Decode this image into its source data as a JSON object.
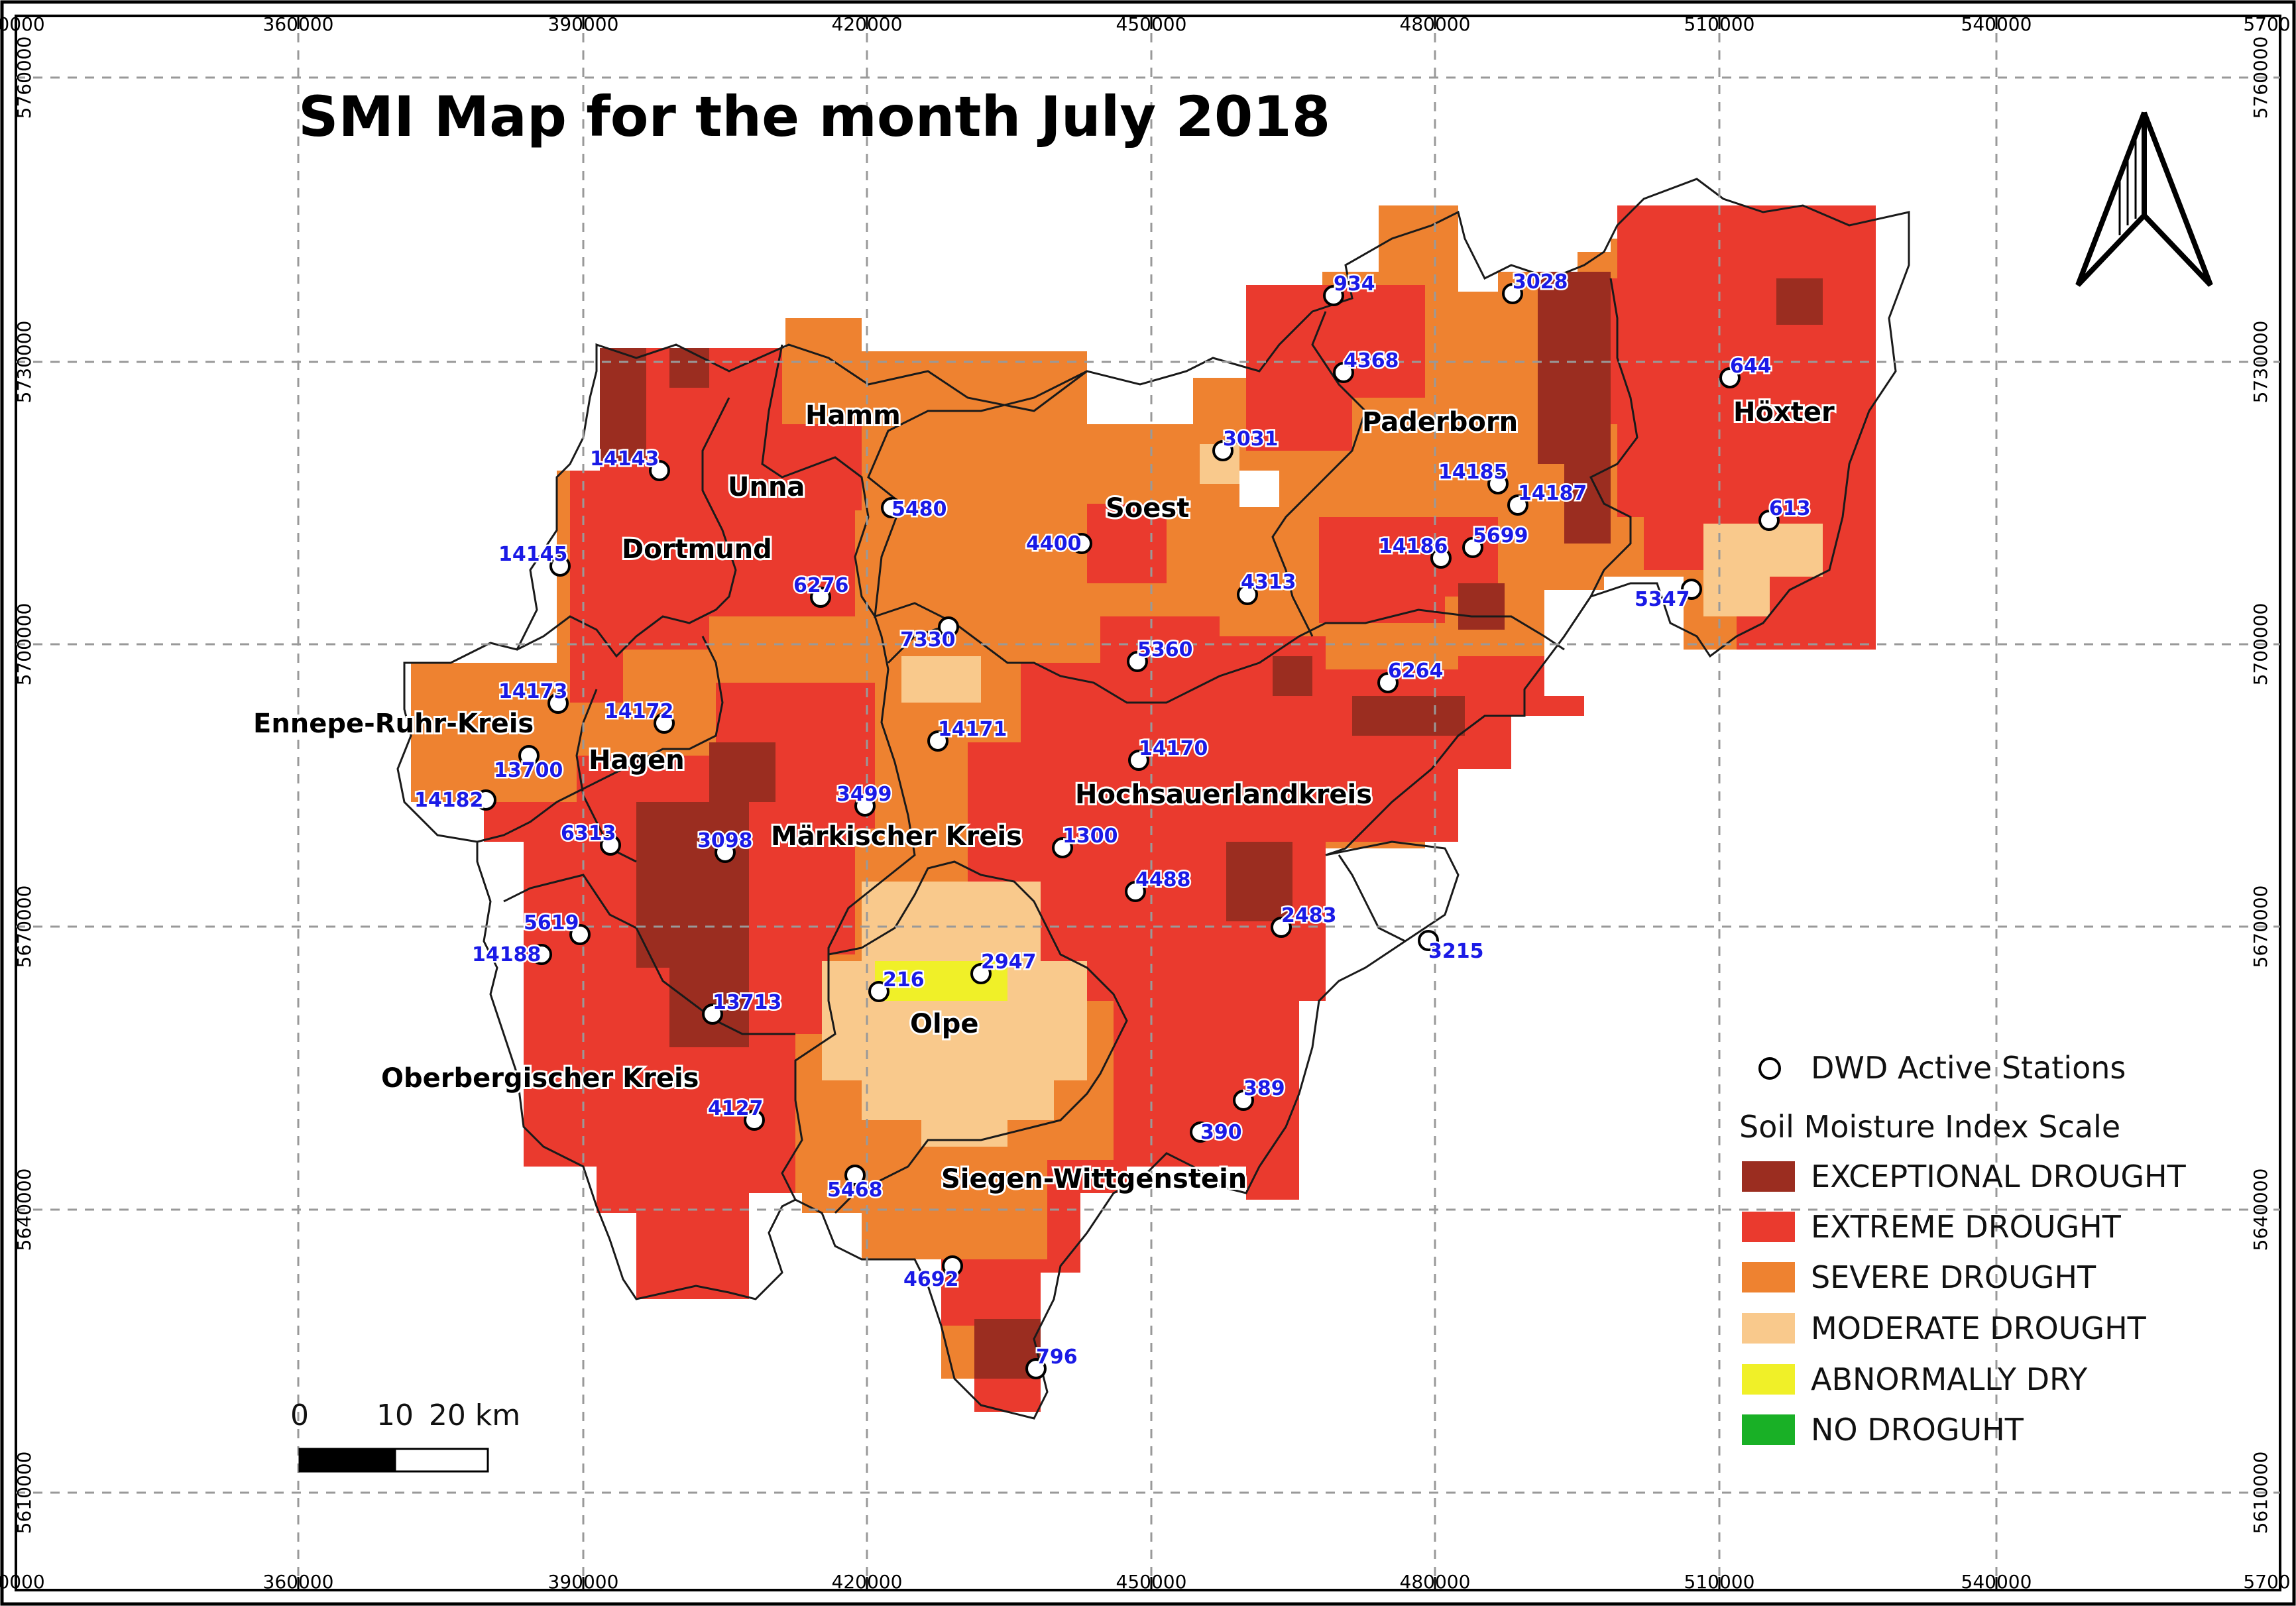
{
  "title": "SMI Map for the month July 2018",
  "grid": {
    "x_labels": [
      "0000",
      "360000",
      "390000",
      "420000",
      "450000",
      "480000",
      "510000",
      "540000",
      "5700"
    ],
    "y_labels": [
      "5760000",
      "5730000",
      "5700000",
      "5670000",
      "5640000",
      "5610000"
    ]
  },
  "districts": [
    {
      "name": "Hamm"
    },
    {
      "name": "Unna"
    },
    {
      "name": "Dortmund"
    },
    {
      "name": "Soest"
    },
    {
      "name": "Paderborn"
    },
    {
      "name": "Höxter"
    },
    {
      "name": "Ennepe-Ruhr-Kreis"
    },
    {
      "name": "Hagen"
    },
    {
      "name": "Märkischer Kreis"
    },
    {
      "name": "Hochsauerlandkreis"
    },
    {
      "name": "Olpe"
    },
    {
      "name": "Oberbergischer Kreis"
    },
    {
      "name": "Siegen-Wittgenstein"
    }
  ],
  "stations": [
    {
      "id": "934"
    },
    {
      "id": "3028"
    },
    {
      "id": "4368"
    },
    {
      "id": "644"
    },
    {
      "id": "3031"
    },
    {
      "id": "14143"
    },
    {
      "id": "14185"
    },
    {
      "id": "14187"
    },
    {
      "id": "5480"
    },
    {
      "id": "613"
    },
    {
      "id": "14145"
    },
    {
      "id": "4400"
    },
    {
      "id": "14186"
    },
    {
      "id": "5699"
    },
    {
      "id": "6276"
    },
    {
      "id": "4313"
    },
    {
      "id": "5347"
    },
    {
      "id": "7330"
    },
    {
      "id": "5360"
    },
    {
      "id": "6264"
    },
    {
      "id": "14173"
    },
    {
      "id": "14172"
    },
    {
      "id": "14171"
    },
    {
      "id": "13700"
    },
    {
      "id": "14170"
    },
    {
      "id": "14182"
    },
    {
      "id": "3499"
    },
    {
      "id": "6313"
    },
    {
      "id": "3098"
    },
    {
      "id": "1300"
    },
    {
      "id": "4488"
    },
    {
      "id": "5619"
    },
    {
      "id": "2483"
    },
    {
      "id": "14188"
    },
    {
      "id": "2947"
    },
    {
      "id": "3215"
    },
    {
      "id": "216"
    },
    {
      "id": "13713"
    },
    {
      "id": "389"
    },
    {
      "id": "4127"
    },
    {
      "id": "390"
    },
    {
      "id": "5468"
    },
    {
      "id": "4692"
    },
    {
      "id": "796"
    }
  ],
  "legend": {
    "stations_label": "DWD Active Stations",
    "scale_title": "Soil Moisture Index Scale",
    "items": [
      {
        "label": "EXCEPTIONAL DROUGHT",
        "color": "#9b2d20"
      },
      {
        "label": "EXTREME DROUGHT",
        "color": "#ea3a2e"
      },
      {
        "label": "SEVERE DROUGHT",
        "color": "#ee8230"
      },
      {
        "label": "MODERATE DROUGHT",
        "color": "#f9c98c"
      },
      {
        "label": "ABNORMALLY DRY",
        "color": "#f0f028"
      },
      {
        "label": "NO DROGUHT",
        "color": "#19b026"
      }
    ]
  },
  "scalebar": {
    "labels": [
      "0",
      "10",
      "20 km"
    ]
  },
  "colors": {
    "exceptional": "#9b2d20",
    "extreme": "#ea3a2e",
    "severe": "#ee8230",
    "moderate": "#f9c98c",
    "dry": "#f0f028"
  }
}
